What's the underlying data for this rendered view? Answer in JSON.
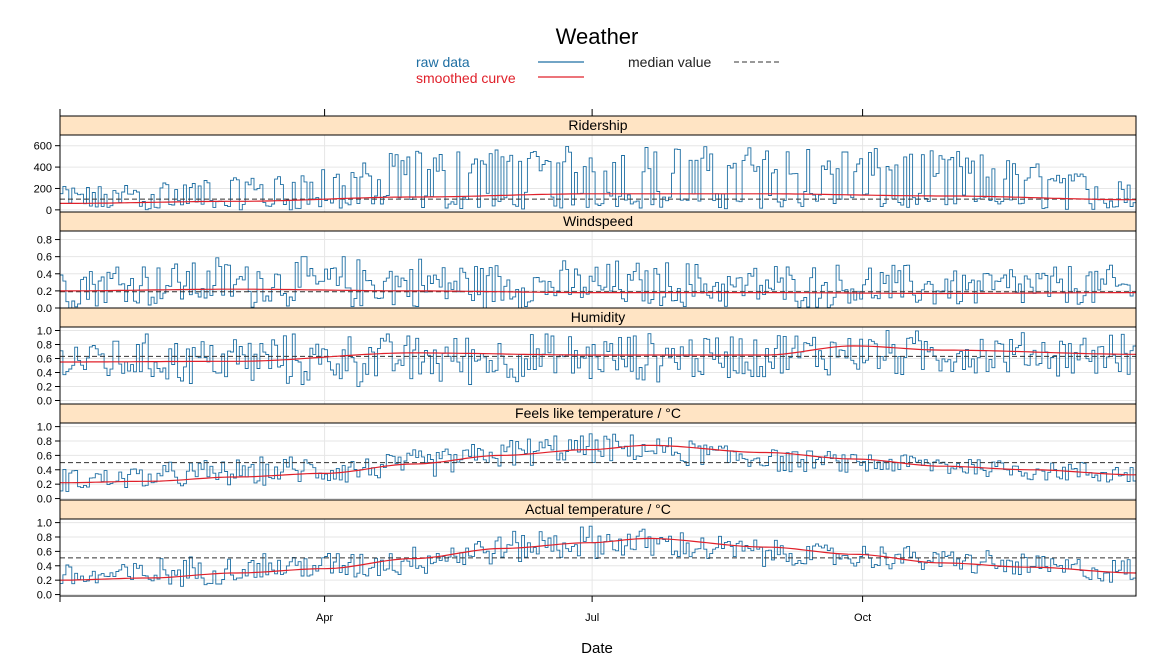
{
  "title": "Weather",
  "colors": {
    "raw": "#1f6fa3",
    "smooth": "#e0202a",
    "median": "#333333",
    "strip_bg": "#ffe4c4",
    "grid": "#e6e6e6",
    "frame": "#000000"
  },
  "legend": {
    "raw_label": "raw data",
    "smooth_label": "smoothed curve",
    "median_label": "median value"
  },
  "chart_data": {
    "type": "line",
    "xlabel": "Date",
    "x_ticks": [
      "Apr",
      "Jul",
      "Oct"
    ],
    "x_tick_days": [
      90,
      181,
      273
    ],
    "days": 366,
    "grid": true,
    "legend_position": "top",
    "panels": [
      {
        "name": "Ridership",
        "ylim": [
          -20,
          700
        ],
        "yticks": [
          0,
          200,
          400,
          600
        ],
        "ytick_labels": [
          "0",
          "200",
          "400",
          "600"
        ],
        "median": 100,
        "smooth": {
          "days": [
            0,
            60,
            120,
            180,
            240,
            300,
            366
          ],
          "values": [
            60,
            80,
            120,
            150,
            150,
            130,
            95
          ]
        },
        "raw_range": {
          "days": [
            0,
            60,
            90,
            120,
            180,
            240,
            300,
            366
          ],
          "high": [
            220,
            300,
            380,
            560,
            600,
            600,
            560,
            300
          ],
          "low": [
            0,
            0,
            0,
            5,
            10,
            10,
            5,
            0
          ]
        }
      },
      {
        "name": "Windspeed",
        "ylim": [
          0,
          0.9
        ],
        "yticks": [
          0,
          0.2,
          0.4,
          0.6,
          0.8
        ],
        "ytick_labels": [
          "0.0",
          "0.2",
          "0.4",
          "0.6",
          "0.8"
        ],
        "median": 0.19,
        "smooth": {
          "days": [
            0,
            60,
            120,
            180,
            240,
            300,
            366
          ],
          "values": [
            0.2,
            0.22,
            0.2,
            0.18,
            0.18,
            0.17,
            0.18
          ]
        },
        "raw_range": {
          "days": [
            0,
            90,
            180,
            270,
            366
          ],
          "high": [
            0.6,
            0.6,
            0.55,
            0.5,
            0.5
          ],
          "low": [
            0.0,
            0.0,
            0.0,
            0.0,
            0.0
          ]
        }
      },
      {
        "name": "Humidity",
        "ylim": [
          -0.05,
          1.05
        ],
        "yticks": [
          0,
          0.2,
          0.4,
          0.6,
          0.8,
          1.0
        ],
        "ytick_labels": [
          "0.0",
          "0.2",
          "0.4",
          "0.6",
          "0.8",
          "1.0"
        ],
        "median": 0.63,
        "smooth": {
          "days": [
            0,
            60,
            120,
            180,
            240,
            270,
            300,
            366
          ],
          "values": [
            0.55,
            0.56,
            0.68,
            0.65,
            0.65,
            0.78,
            0.72,
            0.66
          ]
        },
        "raw_range": {
          "days": [
            0,
            90,
            180,
            270,
            366
          ],
          "high": [
            0.95,
            0.95,
            0.95,
            1.0,
            0.95
          ],
          "low": [
            0.25,
            0.2,
            0.25,
            0.35,
            0.35
          ]
        }
      },
      {
        "name": "Feels like temperature / °C",
        "ylim": [
          -0.02,
          1.05
        ],
        "yticks": [
          0,
          0.2,
          0.4,
          0.6,
          0.8,
          1.0
        ],
        "ytick_labels": [
          "0.0",
          "0.2",
          "0.4",
          "0.6",
          "0.8",
          "1.0"
        ],
        "median": 0.5,
        "smooth": {
          "days": [
            0,
            30,
            60,
            90,
            120,
            150,
            180,
            200,
            240,
            270,
            300,
            330,
            366
          ],
          "values": [
            0.22,
            0.24,
            0.3,
            0.35,
            0.48,
            0.6,
            0.68,
            0.74,
            0.64,
            0.55,
            0.45,
            0.4,
            0.33
          ]
        },
        "raw_range": {
          "days": [
            0,
            90,
            180,
            270,
            366
          ],
          "high": [
            0.45,
            0.6,
            0.9,
            0.65,
            0.5
          ],
          "low": [
            0.1,
            0.2,
            0.5,
            0.35,
            0.2
          ]
        }
      },
      {
        "name": "Actual temperature / °C",
        "ylim": [
          -0.02,
          1.05
        ],
        "yticks": [
          0,
          0.2,
          0.4,
          0.6,
          0.8,
          1.0
        ],
        "ytick_labels": [
          "0.0",
          "0.2",
          "0.4",
          "0.6",
          "0.8",
          "1.0"
        ],
        "median": 0.51,
        "smooth": {
          "days": [
            0,
            30,
            60,
            90,
            120,
            150,
            180,
            200,
            240,
            270,
            300,
            330,
            366
          ],
          "values": [
            0.2,
            0.23,
            0.3,
            0.36,
            0.5,
            0.64,
            0.72,
            0.78,
            0.66,
            0.56,
            0.44,
            0.38,
            0.3
          ]
        },
        "raw_range": {
          "days": [
            0,
            90,
            180,
            270,
            366
          ],
          "high": [
            0.45,
            0.6,
            0.95,
            0.7,
            0.5
          ],
          "low": [
            0.05,
            0.2,
            0.5,
            0.35,
            0.15
          ]
        }
      }
    ]
  }
}
